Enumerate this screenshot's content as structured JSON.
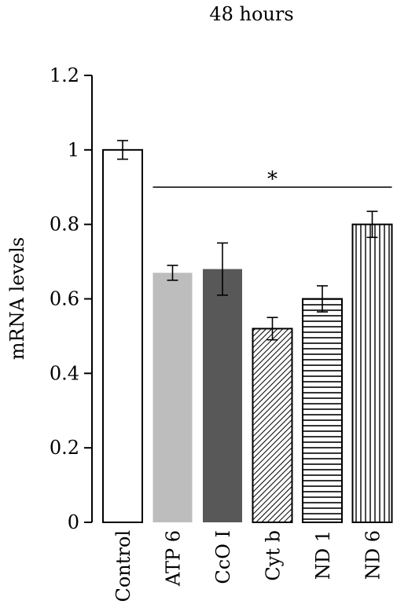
{
  "chart_data": {
    "type": "bar",
    "title": "48 hours",
    "xlabel": "",
    "ylabel": "mRNA levels",
    "ylim": [
      0,
      1.2
    ],
    "yticks": [
      "0",
      "0.2",
      "0.4",
      "0.6",
      "0.8",
      "1",
      "1.2"
    ],
    "categories": [
      "Control",
      "ATP 6",
      "CcO I",
      "Cyt b",
      "ND 1",
      "ND 6"
    ],
    "values": [
      1.0,
      0.67,
      0.68,
      0.52,
      0.6,
      0.8
    ],
    "errors": [
      0.025,
      0.02,
      0.07,
      0.03,
      0.035,
      0.035
    ],
    "fills": [
      "white",
      "#bdbdbd",
      "#585858",
      "diagonal-hatch",
      "horizontal-lines",
      "vertical-lines"
    ],
    "significance": {
      "label": "*",
      "y": 0.9,
      "from_category": "ATP 6",
      "to_category": "ND 6"
    },
    "grid": false,
    "legend": "none"
  }
}
